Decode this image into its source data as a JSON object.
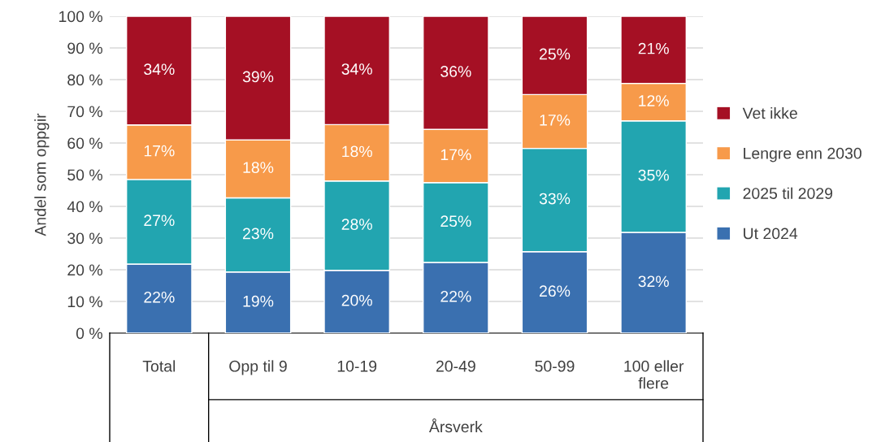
{
  "chart_data": {
    "type": "bar",
    "stacked": true,
    "ylabel": "Andel som oppgir",
    "xlabel": "Årsverk",
    "categories": [
      "Total",
      "Opp til 9",
      "10-19",
      "20-49",
      "50-99",
      "100 eller\nflere"
    ],
    "series": [
      {
        "name": "Ut 2024",
        "color": "#3a70b0",
        "values": [
          21.8,
          19.3,
          19.8,
          22.3,
          25.7,
          31.8
        ],
        "value_labels": [
          "22%",
          "19%",
          "20%",
          "22%",
          "26%",
          "32%"
        ]
      },
      {
        "name": "2025 til 2029",
        "color": "#22a5b0",
        "values": [
          26.7,
          23.4,
          28.2,
          25.2,
          32.6,
          35.2
        ],
        "value_labels": [
          "27%",
          "23%",
          "28%",
          "25%",
          "33%",
          "35%"
        ]
      },
      {
        "name": "Lengre enn 2030",
        "color": "#f79a4a",
        "values": [
          17.2,
          18.3,
          17.8,
          16.8,
          17.0,
          11.8
        ],
        "value_labels": [
          "17%",
          "18%",
          "18%",
          "17%",
          "17%",
          "12%"
        ]
      },
      {
        "name": "Vet ikke",
        "color": "#a51024",
        "values": [
          34.3,
          39.0,
          34.2,
          35.7,
          24.7,
          21.2
        ],
        "value_labels": [
          "34%",
          "39%",
          "34%",
          "36%",
          "25%",
          "21%"
        ]
      }
    ],
    "ylim": [
      0,
      100
    ],
    "yticks": [
      {
        "value": 0,
        "label": "0 %"
      },
      {
        "value": 10,
        "label": "10 %"
      },
      {
        "value": 20,
        "label": "20 %"
      },
      {
        "value": 30,
        "label": "30 %"
      },
      {
        "value": 40,
        "label": "40 %"
      },
      {
        "value": 50,
        "label": "50 %"
      },
      {
        "value": 60,
        "label": "60 %"
      },
      {
        "value": 70,
        "label": "70 %"
      },
      {
        "value": 80,
        "label": "80 %"
      },
      {
        "value": 90,
        "label": "90 %"
      },
      {
        "value": 100,
        "label": "100 %"
      }
    ],
    "grid": "y",
    "legend": "right"
  }
}
